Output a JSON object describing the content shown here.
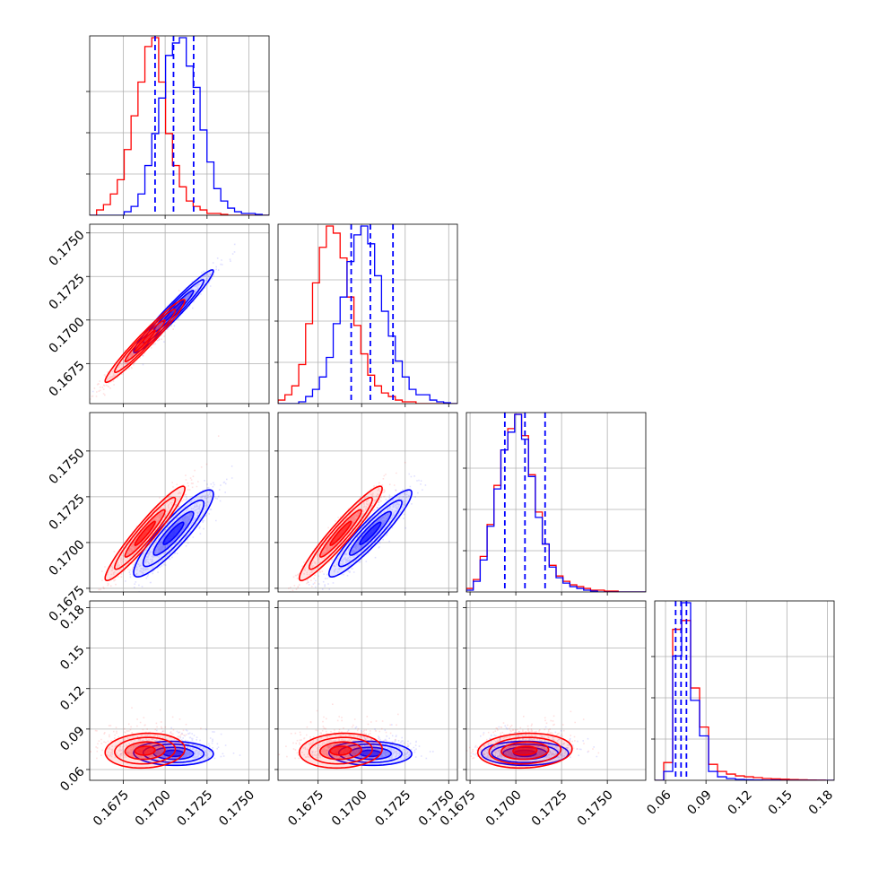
{
  "chart_data": {
    "type": "corner",
    "grid": true,
    "parameters": 4,
    "colors": {
      "red_series": "#ff0000",
      "blue_series": "#0000ff",
      "grid": "#b0b0b0"
    },
    "axes": [
      {
        "range": [
          0.1655,
          0.1762
        ],
        "ticks": [
          0.1675,
          0.17,
          0.1725,
          0.175
        ],
        "tick_labels": [
          "0.1675",
          "0.1700",
          "0.1725",
          "0.1750"
        ]
      },
      {
        "range": [
          0.1652,
          0.1755
        ],
        "ticks": [
          0.1675,
          0.17,
          0.1725,
          0.175
        ],
        "tick_labels": [
          "0.1675",
          "0.1700",
          "0.1725",
          "0.1750"
        ]
      },
      {
        "range": [
          0.1673,
          0.1771
        ],
        "ticks": [
          0.1675,
          0.17,
          0.1725,
          0.175
        ],
        "tick_labels": [
          "0.1675",
          "0.1700",
          "0.1725",
          "0.1750"
        ]
      },
      {
        "range": [
          0.052,
          0.185
        ],
        "ticks": [
          0.06,
          0.09,
          0.12,
          0.15,
          0.18
        ],
        "tick_labels": [
          "0.06",
          "0.09",
          "0.12",
          "0.15",
          "0.18"
        ]
      }
    ],
    "series": [
      {
        "color": "#0000ff",
        "means": [
          0.1705,
          0.1705,
          0.1705,
          0.072
        ],
        "sds": [
          0.0012,
          0.0012,
          0.0012,
          0.0045
        ],
        "rho": [
          [
            1,
            0.97,
            0.9,
            -0.05
          ],
          [
            0.97,
            1,
            0.93,
            -0.05
          ],
          [
            0.9,
            0.93,
            1,
            0
          ],
          [
            -0.05,
            -0.05,
            0,
            1
          ]
        ],
        "quantile_lines": [
          [
            0.1694,
            0.1705,
            0.1717
          ],
          [
            0.1694,
            0.1705,
            0.1718
          ],
          [
            0.1694,
            0.1705,
            0.1716
          ],
          [
            0.0675,
            0.0715,
            0.0755
          ]
        ]
      },
      {
        "color": "#ff0000",
        "means": [
          0.1688,
          0.1688,
          0.1705,
          0.074
        ],
        "sds": [
          0.0012,
          0.0012,
          0.0013,
          0.0065
        ],
        "rho": [
          [
            1,
            0.97,
            0.95,
            0.1
          ],
          [
            0.97,
            1,
            0.95,
            0.1
          ],
          [
            0.95,
            0.95,
            1,
            0.1
          ],
          [
            0.1,
            0.1,
            0.1,
            1
          ]
        ]
      }
    ],
    "histograms": [
      {
        "blue": [
          0,
          0,
          0,
          0,
          0,
          0.02,
          0.05,
          0.12,
          0.28,
          0.46,
          0.66,
          0.9,
          0.97,
          1,
          0.84,
          0.72,
          0.48,
          0.3,
          0.15,
          0.08,
          0.04,
          0.02,
          0.01,
          0.01,
          0.005,
          0
        ],
        "red": [
          0,
          0.03,
          0.06,
          0.12,
          0.2,
          0.37,
          0.56,
          0.75,
          0.95,
          1,
          0.75,
          0.46,
          0.28,
          0.16,
          0.08,
          0.05,
          0.03,
          0.01,
          0.01,
          0.005,
          0,
          0,
          0,
          0,
          0,
          0
        ]
      },
      {
        "blue": [
          0,
          0,
          0,
          0.01,
          0.04,
          0.08,
          0.15,
          0.26,
          0.45,
          0.6,
          0.8,
          0.95,
          1,
          0.9,
          0.72,
          0.52,
          0.38,
          0.24,
          0.15,
          0.08,
          0.05,
          0.05,
          0.02,
          0.01,
          0.005,
          0
        ],
        "red": [
          0.02,
          0.05,
          0.1,
          0.22,
          0.45,
          0.68,
          0.88,
          1,
          0.96,
          0.82,
          0.6,
          0.44,
          0.28,
          0.16,
          0.1,
          0.06,
          0.04,
          0.02,
          0.01,
          0.01,
          0,
          0,
          0,
          0,
          0,
          0
        ]
      },
      {
        "blue": [
          0.01,
          0.06,
          0.18,
          0.37,
          0.58,
          0.8,
          0.9,
          1,
          0.86,
          0.65,
          0.42,
          0.27,
          0.14,
          0.08,
          0.05,
          0.03,
          0.02,
          0.01,
          0.005,
          0,
          0,
          0,
          0,
          0,
          0,
          0
        ],
        "red": [
          0.02,
          0.07,
          0.2,
          0.38,
          0.6,
          0.8,
          0.92,
          1,
          0.88,
          0.66,
          0.45,
          0.27,
          0.15,
          0.09,
          0.06,
          0.04,
          0.03,
          0.02,
          0.01,
          0.01,
          0.005,
          0.005,
          0,
          0,
          0,
          0
        ]
      },
      {
        "blue": [
          0,
          0.05,
          0.7,
          1,
          0.45,
          0.25,
          0.05,
          0.02,
          0.01,
          0.005,
          0.003,
          0.002,
          0.001,
          0.001,
          0,
          0,
          0,
          0,
          0,
          0
        ],
        "red": [
          0,
          0.1,
          0.85,
          0.9,
          0.52,
          0.3,
          0.09,
          0.05,
          0.035,
          0.025,
          0.02,
          0.015,
          0.01,
          0.008,
          0.006,
          0.004,
          0.003,
          0.002,
          0.001,
          0
        ]
      }
    ]
  }
}
